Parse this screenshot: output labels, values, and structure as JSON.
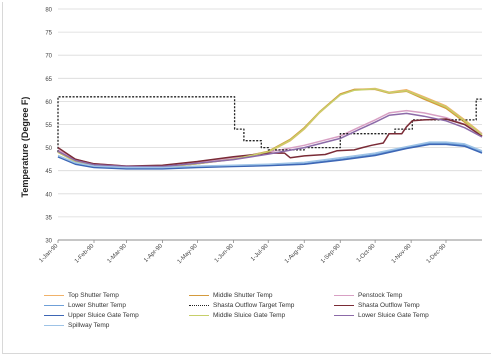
{
  "chart_data": {
    "type": "line",
    "ylabel": "Temperature (Degree F)",
    "xlabel": "",
    "ylim": [
      30,
      80
    ],
    "yticks": [
      30,
      35,
      40,
      45,
      50,
      55,
      60,
      65,
      70,
      75,
      80
    ],
    "xlim": [
      0,
      365
    ],
    "categories": [
      "1-Jan-90",
      "1-Feb-90",
      "1-Mar-90",
      "1-Apr-90",
      "1-May-90",
      "1-Jun-90",
      "1-Jul-90",
      "1-Aug-90",
      "1-Sep-90",
      "1-Oct-90",
      "1-Nov-90",
      "1-Dec-90"
    ],
    "category_days": [
      0,
      31,
      59,
      90,
      120,
      151,
      181,
      212,
      243,
      273,
      304,
      334
    ],
    "grid": true,
    "legend_position": "bottom",
    "series": [
      {
        "name": "Top Shutter Temp",
        "color": "#f0b26a",
        "style": "solid",
        "x": [
          0,
          15,
          31,
          59,
          90,
          120,
          151,
          181,
          200,
          212,
          225,
          243,
          255,
          273,
          285,
          300,
          315,
          334,
          350,
          365
        ],
        "y": [
          49,
          47,
          46.2,
          45.8,
          45.8,
          46.5,
          47.5,
          49,
          51.5,
          54,
          57.5,
          61.5,
          62.5,
          62.8,
          62,
          62.5,
          61,
          59,
          56,
          53
        ]
      },
      {
        "name": "Middle Shutter Temp",
        "color": "#d49b3d",
        "style": "solid",
        "x": [
          0,
          15,
          31,
          59,
          90,
          120,
          151,
          181,
          200,
          212,
          225,
          243,
          255,
          273,
          285,
          300,
          315,
          334,
          350,
          365
        ],
        "y": [
          49,
          47,
          46.2,
          45.8,
          45.8,
          46.5,
          47.6,
          49.2,
          51.8,
          54.3,
          57.7,
          61.6,
          62.6,
          62.6,
          61.8,
          62.2,
          60.5,
          58.5,
          55.5,
          52.5
        ]
      },
      {
        "name": "Penstock Temp",
        "color": "#d8a0c4",
        "style": "solid",
        "x": [
          0,
          15,
          31,
          59,
          90,
          120,
          151,
          181,
          212,
          243,
          260,
          273,
          285,
          300,
          315,
          334,
          350,
          365
        ],
        "y": [
          49.5,
          47.5,
          46.5,
          46,
          46,
          46.8,
          47.8,
          49,
          50.5,
          52.5,
          54.5,
          56,
          57.5,
          58,
          57.5,
          56.5,
          55,
          53
        ]
      },
      {
        "name": "Lower Shutter Temp",
        "color": "#6fa0d8",
        "style": "solid",
        "x": [
          0,
          15,
          31,
          59,
          90,
          120,
          151,
          181,
          212,
          243,
          273,
          300,
          320,
          334,
          350,
          365
        ],
        "y": [
          48,
          46.5,
          45.8,
          45.5,
          45.5,
          45.8,
          46,
          46.2,
          46.5,
          47.5,
          48.5,
          50,
          51,
          51,
          50.5,
          49
        ]
      },
      {
        "name": "Shasta Outflow Target Temp",
        "color": "#222222",
        "style": "dotted",
        "x": [
          0,
          0,
          152,
          152,
          160,
          160,
          175,
          175,
          181,
          181,
          212,
          212,
          243,
          243,
          290,
          290,
          305,
          305,
          360,
          360,
          365
        ],
        "y": [
          49,
          61,
          61,
          54,
          54,
          51.5,
          51.5,
          50,
          50,
          49.5,
          49.5,
          50,
          50,
          53,
          53,
          54,
          54,
          56,
          56,
          60.5,
          60.5
        ]
      },
      {
        "name": "Shasta Outflow Temp",
        "color": "#7a2b36",
        "style": "solid",
        "x": [
          0,
          15,
          31,
          59,
          90,
          120,
          151,
          181,
          195,
          200,
          212,
          230,
          240,
          255,
          262,
          270,
          280,
          285,
          296,
          300,
          305,
          315,
          334,
          350,
          365
        ],
        "y": [
          50,
          47.5,
          46.5,
          46,
          46.2,
          47,
          48,
          48.8,
          48.8,
          47.8,
          48.2,
          48.5,
          49.3,
          49.5,
          50,
          50.5,
          51,
          53,
          53,
          54.5,
          55.8,
          56,
          56.2,
          55,
          52.5
        ]
      },
      {
        "name": "Upper Sluice Gate Temp",
        "color": "#3d66b5",
        "style": "solid",
        "x": [
          0,
          15,
          31,
          59,
          90,
          120,
          151,
          181,
          212,
          243,
          273,
          300,
          320,
          334,
          350,
          365
        ],
        "y": [
          48,
          46.4,
          45.7,
          45.4,
          45.4,
          45.7,
          45.9,
          46.1,
          46.4,
          47.3,
          48.3,
          49.8,
          50.7,
          50.7,
          50.3,
          48.8
        ]
      },
      {
        "name": "Middle Sluice Gate Temp",
        "color": "#c7cf6a",
        "style": "solid",
        "x": [
          0,
          15,
          31,
          59,
          90,
          120,
          151,
          181,
          200,
          212,
          225,
          243,
          255,
          273,
          285,
          300,
          315,
          334,
          350,
          365
        ],
        "y": [
          49,
          47,
          46.2,
          45.8,
          45.8,
          46.5,
          47.5,
          49.1,
          51.6,
          54.1,
          57.6,
          61.4,
          62.4,
          62.7,
          61.9,
          62.3,
          60.8,
          58.8,
          55.8,
          52.8
        ]
      },
      {
        "name": "Lower Sluice Gate Temp",
        "color": "#8c6aa8",
        "style": "solid",
        "x": [
          0,
          15,
          31,
          59,
          90,
          120,
          151,
          181,
          212,
          243,
          260,
          273,
          285,
          300,
          315,
          334,
          350,
          365
        ],
        "y": [
          49.2,
          47.2,
          46.3,
          45.9,
          45.9,
          46.6,
          47.4,
          48.6,
          50,
          52,
          54,
          55.5,
          57,
          57.4,
          56.8,
          55.8,
          54.3,
          52.3
        ]
      },
      {
        "name": "Spillway Temp",
        "color": "#9ec3e6",
        "style": "solid",
        "x": [
          0,
          15,
          31,
          59,
          90,
          120,
          151,
          181,
          212,
          243,
          273,
          300,
          320,
          334,
          350,
          365
        ],
        "y": [
          48.3,
          46.7,
          46,
          45.7,
          45.7,
          46,
          46.2,
          46.4,
          46.8,
          47.8,
          48.8,
          50.2,
          51.2,
          51.2,
          50.8,
          49.3
        ]
      }
    ]
  }
}
